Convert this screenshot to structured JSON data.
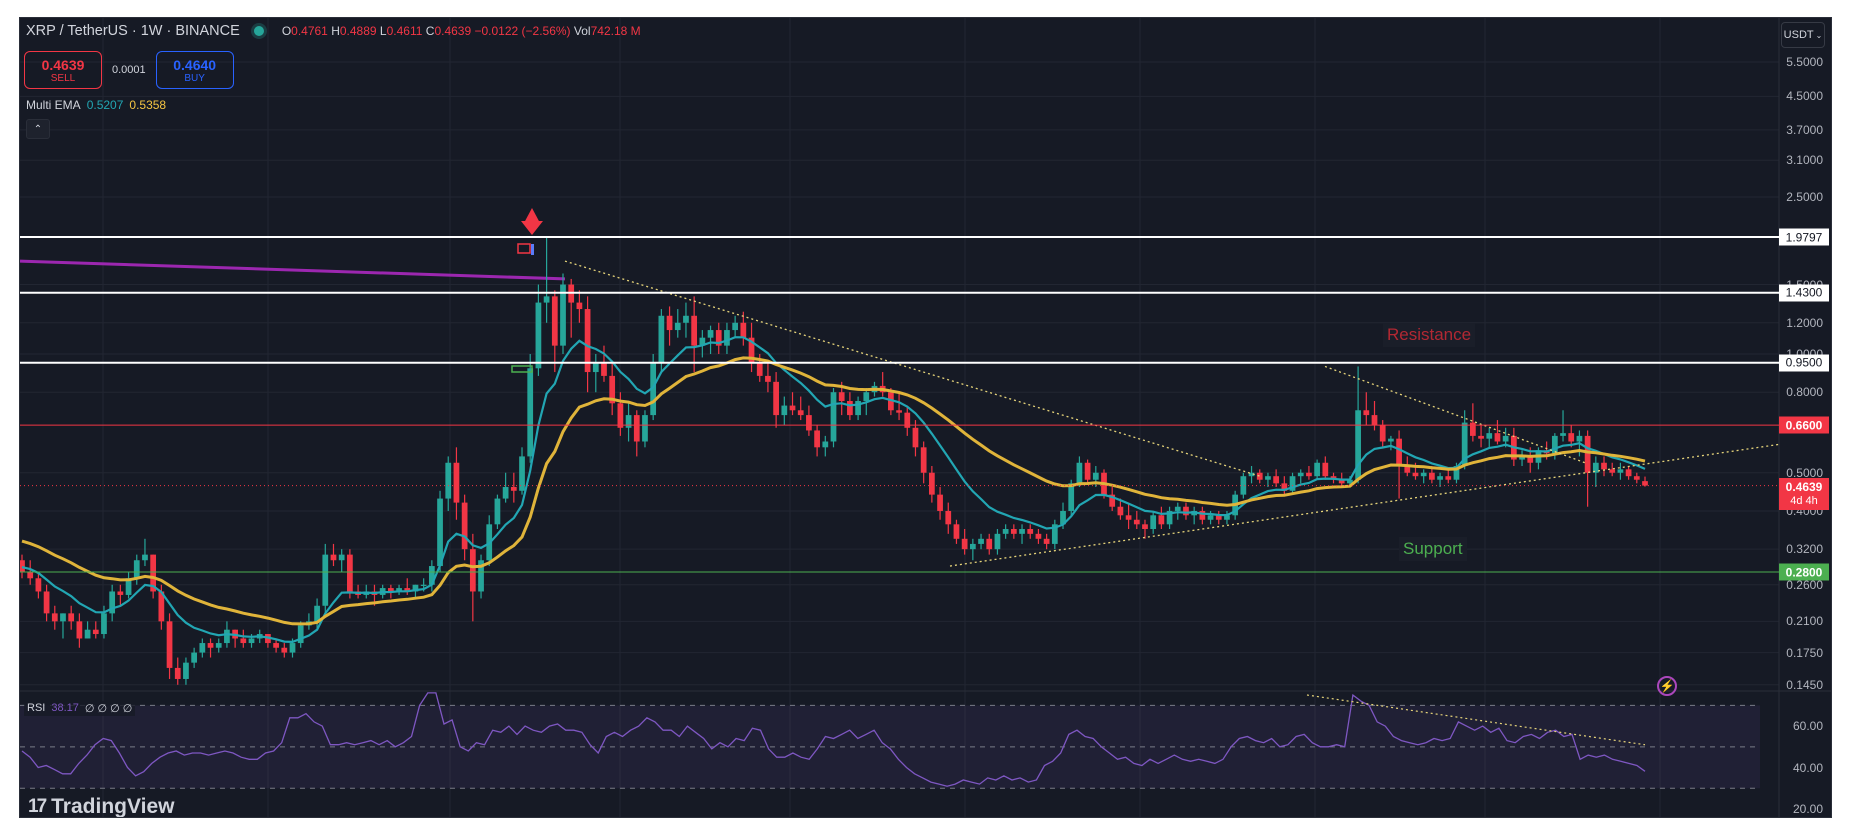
{
  "header": {
    "symbol_title": "XRP / TetherUS · 1W · BINANCE",
    "status_color": "#26a69a",
    "ohlc": {
      "o_label": "O",
      "o": "0.4761",
      "h_label": "H",
      "h": "0.4889",
      "l_label": "L",
      "l": "0.4611",
      "c_label": "C",
      "c": "0.4639",
      "change": "−0.0122 (−2.56%)",
      "vol_label": "Vol",
      "vol": "742.18 M"
    },
    "sell": {
      "price": "0.4639",
      "label": "SELL"
    },
    "spread": "0.0001",
    "buy": {
      "price": "0.4640",
      "label": "BUY"
    },
    "indicator": {
      "name": "Multi EMA",
      "ema1": "0.5207",
      "ema2": "0.5358"
    },
    "collapse_icon": "chevron-up-icon"
  },
  "currency_selector": {
    "label": "USDT",
    "icon": "chevron-down-icon"
  },
  "price_axis": {
    "ticks": [
      "5.5000",
      "4.5000",
      "3.7000",
      "3.1000",
      "2.5000",
      "1.5000",
      "1.2000",
      "1.0000",
      "0.8000",
      "0.5000",
      "0.4000",
      "0.3200",
      "0.2600",
      "0.2100",
      "0.1750",
      "0.1450"
    ]
  },
  "levels": [
    {
      "price": "1.9797",
      "style": "white"
    },
    {
      "price": "1.4300",
      "style": "white"
    },
    {
      "price": "0.9500",
      "style": "white"
    },
    {
      "price": "0.6600",
      "style": "red"
    },
    {
      "price": "0.2800",
      "style": "green"
    }
  ],
  "current_price": {
    "price": "0.4639",
    "countdown": "4d 4h"
  },
  "annotations": {
    "resistance": "Resistance",
    "support": "Support"
  },
  "rsi": {
    "label": "RSI",
    "value": "38.17",
    "extras": "∅ ∅ ∅ ∅",
    "ticks": [
      "60.00",
      "40.00",
      "20.00"
    ]
  },
  "branding": {
    "logo_mark": "17",
    "name": "TradingView"
  },
  "flash_icon": "lightning-icon",
  "colors": {
    "background": "#161a25",
    "up": "#26a69a",
    "down": "#f23645",
    "ema_fast": "#22a6b3",
    "ema_slow": "#e0b43a",
    "ema_long": "#9c27b0",
    "rsi_line": "#7e57c2",
    "trendline": "#e6d47a"
  },
  "chart_data": {
    "type": "candlestick",
    "title": "XRP / TetherUS · 1W · BINANCE",
    "scale": "log",
    "ylim": [
      0.14,
      6.0
    ],
    "yticks": [
      5.5,
      4.5,
      3.7,
      3.1,
      2.5,
      1.5,
      1.2,
      1.0,
      0.8,
      0.5,
      0.4,
      0.32,
      0.26,
      0.21,
      0.175,
      0.145
    ],
    "horizontal_levels": [
      1.9797,
      1.43,
      0.95,
      0.66,
      0.28
    ],
    "current_price": 0.4639,
    "series": [
      {
        "name": "EMA fast",
        "last": 0.5207
      },
      {
        "name": "EMA slow",
        "last": 0.5358
      }
    ],
    "candles_ohlc": [
      [
        0.3,
        0.31,
        0.27,
        0.28
      ],
      [
        0.28,
        0.3,
        0.26,
        0.27
      ],
      [
        0.27,
        0.28,
        0.24,
        0.25
      ],
      [
        0.25,
        0.26,
        0.21,
        0.22
      ],
      [
        0.22,
        0.23,
        0.2,
        0.21
      ],
      [
        0.21,
        0.22,
        0.19,
        0.22
      ],
      [
        0.22,
        0.23,
        0.2,
        0.21
      ],
      [
        0.21,
        0.22,
        0.18,
        0.19
      ],
      [
        0.19,
        0.21,
        0.19,
        0.2
      ],
      [
        0.2,
        0.21,
        0.19,
        0.195
      ],
      [
        0.195,
        0.23,
        0.19,
        0.22
      ],
      [
        0.22,
        0.26,
        0.21,
        0.25
      ],
      [
        0.25,
        0.26,
        0.23,
        0.245
      ],
      [
        0.245,
        0.28,
        0.24,
        0.27
      ],
      [
        0.27,
        0.31,
        0.26,
        0.3
      ],
      [
        0.3,
        0.34,
        0.29,
        0.31
      ],
      [
        0.31,
        0.31,
        0.24,
        0.25
      ],
      [
        0.25,
        0.26,
        0.2,
        0.21
      ],
      [
        0.21,
        0.22,
        0.15,
        0.16
      ],
      [
        0.16,
        0.17,
        0.145,
        0.15
      ],
      [
        0.15,
        0.17,
        0.145,
        0.165
      ],
      [
        0.165,
        0.18,
        0.16,
        0.175
      ],
      [
        0.175,
        0.19,
        0.17,
        0.185
      ],
      [
        0.185,
        0.19,
        0.17,
        0.18
      ],
      [
        0.18,
        0.19,
        0.175,
        0.185
      ],
      [
        0.185,
        0.21,
        0.18,
        0.2
      ],
      [
        0.2,
        0.2,
        0.18,
        0.19
      ],
      [
        0.19,
        0.2,
        0.18,
        0.185
      ],
      [
        0.185,
        0.195,
        0.18,
        0.19
      ],
      [
        0.19,
        0.2,
        0.185,
        0.195
      ],
      [
        0.195,
        0.195,
        0.18,
        0.185
      ],
      [
        0.185,
        0.19,
        0.175,
        0.18
      ],
      [
        0.18,
        0.185,
        0.17,
        0.175
      ],
      [
        0.175,
        0.19,
        0.17,
        0.185
      ],
      [
        0.185,
        0.21,
        0.18,
        0.205
      ],
      [
        0.205,
        0.22,
        0.2,
        0.21
      ],
      [
        0.21,
        0.24,
        0.2,
        0.23
      ],
      [
        0.23,
        0.33,
        0.22,
        0.31
      ],
      [
        0.31,
        0.33,
        0.29,
        0.3
      ],
      [
        0.3,
        0.32,
        0.28,
        0.31
      ],
      [
        0.31,
        0.32,
        0.24,
        0.25
      ],
      [
        0.25,
        0.26,
        0.24,
        0.245
      ],
      [
        0.245,
        0.26,
        0.24,
        0.25
      ],
      [
        0.25,
        0.26,
        0.23,
        0.245
      ],
      [
        0.245,
        0.26,
        0.24,
        0.255
      ],
      [
        0.255,
        0.26,
        0.24,
        0.25
      ],
      [
        0.25,
        0.26,
        0.245,
        0.255
      ],
      [
        0.255,
        0.27,
        0.245,
        0.25
      ],
      [
        0.25,
        0.26,
        0.24,
        0.26
      ],
      [
        0.26,
        0.27,
        0.25,
        0.26
      ],
      [
        0.26,
        0.3,
        0.25,
        0.29
      ],
      [
        0.29,
        0.45,
        0.28,
        0.43
      ],
      [
        0.43,
        0.55,
        0.4,
        0.53
      ],
      [
        0.53,
        0.58,
        0.38,
        0.42
      ],
      [
        0.42,
        0.44,
        0.3,
        0.32
      ],
      [
        0.32,
        0.35,
        0.21,
        0.25
      ],
      [
        0.25,
        0.31,
        0.24,
        0.3
      ],
      [
        0.3,
        0.39,
        0.29,
        0.37
      ],
      [
        0.37,
        0.44,
        0.36,
        0.43
      ],
      [
        0.43,
        0.5,
        0.42,
        0.46
      ],
      [
        0.46,
        0.5,
        0.42,
        0.45
      ],
      [
        0.45,
        0.58,
        0.44,
        0.55
      ],
      [
        0.55,
        1.0,
        0.53,
        0.92
      ],
      [
        0.92,
        1.5,
        0.88,
        1.35
      ],
      [
        1.35,
        1.97,
        1.2,
        1.4
      ],
      [
        1.4,
        1.45,
        0.9,
        1.05
      ],
      [
        1.05,
        1.6,
        1.0,
        1.5
      ],
      [
        1.5,
        1.55,
        1.1,
        1.35
      ],
      [
        1.35,
        1.45,
        1.2,
        1.3
      ],
      [
        1.3,
        1.4,
        0.8,
        0.9
      ],
      [
        0.9,
        1.0,
        0.8,
        0.95
      ],
      [
        0.95,
        1.05,
        0.85,
        0.88
      ],
      [
        0.88,
        0.95,
        0.7,
        0.75
      ],
      [
        0.75,
        0.8,
        0.62,
        0.65
      ],
      [
        0.65,
        0.75,
        0.6,
        0.7
      ],
      [
        0.7,
        0.72,
        0.55,
        0.6
      ],
      [
        0.6,
        0.72,
        0.58,
        0.7
      ],
      [
        0.7,
        1.0,
        0.68,
        0.95
      ],
      [
        0.95,
        1.3,
        0.9,
        1.25
      ],
      [
        1.25,
        1.32,
        1.05,
        1.15
      ],
      [
        1.15,
        1.3,
        1.1,
        1.2
      ],
      [
        1.2,
        1.35,
        1.1,
        1.25
      ],
      [
        1.25,
        1.4,
        0.9,
        1.05
      ],
      [
        1.05,
        1.15,
        0.98,
        1.1
      ],
      [
        1.1,
        1.18,
        1.0,
        1.15
      ],
      [
        1.15,
        1.2,
        1.0,
        1.05
      ],
      [
        1.05,
        1.2,
        1.0,
        1.15
      ],
      [
        1.15,
        1.25,
        1.1,
        1.2
      ],
      [
        1.2,
        1.28,
        1.05,
        1.1
      ],
      [
        1.1,
        1.2,
        0.9,
        0.95
      ],
      [
        0.95,
        1.0,
        0.85,
        0.88
      ],
      [
        0.88,
        0.95,
        0.8,
        0.85
      ],
      [
        0.85,
        0.9,
        0.65,
        0.7
      ],
      [
        0.7,
        0.78,
        0.66,
        0.74
      ],
      [
        0.74,
        0.8,
        0.7,
        0.72
      ],
      [
        0.72,
        0.78,
        0.68,
        0.7
      ],
      [
        0.7,
        0.74,
        0.62,
        0.64
      ],
      [
        0.64,
        0.66,
        0.55,
        0.58
      ],
      [
        0.58,
        0.62,
        0.55,
        0.6
      ],
      [
        0.6,
        0.82,
        0.58,
        0.8
      ],
      [
        0.8,
        0.85,
        0.7,
        0.76
      ],
      [
        0.76,
        0.8,
        0.68,
        0.7
      ],
      [
        0.7,
        0.78,
        0.68,
        0.76
      ],
      [
        0.76,
        0.82,
        0.7,
        0.8
      ],
      [
        0.8,
        0.85,
        0.78,
        0.83
      ],
      [
        0.83,
        0.9,
        0.78,
        0.8
      ],
      [
        0.8,
        0.82,
        0.7,
        0.72
      ],
      [
        0.72,
        0.8,
        0.68,
        0.71
      ],
      [
        0.71,
        0.74,
        0.62,
        0.65
      ],
      [
        0.65,
        0.68,
        0.55,
        0.58
      ],
      [
        0.58,
        0.6,
        0.47,
        0.5
      ],
      [
        0.5,
        0.52,
        0.42,
        0.44
      ],
      [
        0.44,
        0.46,
        0.38,
        0.4
      ],
      [
        0.4,
        0.42,
        0.35,
        0.37
      ],
      [
        0.37,
        0.38,
        0.33,
        0.34
      ],
      [
        0.34,
        0.36,
        0.31,
        0.32
      ],
      [
        0.32,
        0.34,
        0.3,
        0.33
      ],
      [
        0.33,
        0.35,
        0.32,
        0.34
      ],
      [
        0.34,
        0.35,
        0.31,
        0.32
      ],
      [
        0.32,
        0.36,
        0.31,
        0.35
      ],
      [
        0.35,
        0.37,
        0.34,
        0.36
      ],
      [
        0.36,
        0.37,
        0.34,
        0.35
      ],
      [
        0.35,
        0.37,
        0.33,
        0.36
      ],
      [
        0.36,
        0.37,
        0.34,
        0.35
      ],
      [
        0.35,
        0.36,
        0.33,
        0.34
      ],
      [
        0.34,
        0.35,
        0.32,
        0.33
      ],
      [
        0.33,
        0.38,
        0.32,
        0.37
      ],
      [
        0.37,
        0.42,
        0.36,
        0.4
      ],
      [
        0.4,
        0.48,
        0.39,
        0.47
      ],
      [
        0.47,
        0.55,
        0.46,
        0.53
      ],
      [
        0.53,
        0.54,
        0.47,
        0.48
      ],
      [
        0.48,
        0.52,
        0.46,
        0.5
      ],
      [
        0.5,
        0.51,
        0.43,
        0.44
      ],
      [
        0.44,
        0.46,
        0.4,
        0.41
      ],
      [
        0.41,
        0.43,
        0.38,
        0.39
      ],
      [
        0.39,
        0.42,
        0.36,
        0.38
      ],
      [
        0.38,
        0.4,
        0.36,
        0.37
      ],
      [
        0.37,
        0.38,
        0.34,
        0.36
      ],
      [
        0.36,
        0.4,
        0.35,
        0.39
      ],
      [
        0.39,
        0.41,
        0.36,
        0.37
      ],
      [
        0.37,
        0.41,
        0.36,
        0.4
      ],
      [
        0.4,
        0.42,
        0.38,
        0.41
      ],
      [
        0.41,
        0.42,
        0.38,
        0.39
      ],
      [
        0.39,
        0.41,
        0.37,
        0.4
      ],
      [
        0.4,
        0.41,
        0.37,
        0.38
      ],
      [
        0.38,
        0.4,
        0.37,
        0.39
      ],
      [
        0.39,
        0.4,
        0.37,
        0.38
      ],
      [
        0.38,
        0.4,
        0.37,
        0.39
      ],
      [
        0.39,
        0.45,
        0.38,
        0.44
      ],
      [
        0.44,
        0.5,
        0.43,
        0.49
      ],
      [
        0.49,
        0.52,
        0.47,
        0.5
      ],
      [
        0.5,
        0.51,
        0.47,
        0.48
      ],
      [
        0.48,
        0.5,
        0.46,
        0.49
      ],
      [
        0.49,
        0.51,
        0.46,
        0.47
      ],
      [
        0.47,
        0.49,
        0.44,
        0.45
      ],
      [
        0.45,
        0.5,
        0.44,
        0.49
      ],
      [
        0.49,
        0.51,
        0.47,
        0.5
      ],
      [
        0.5,
        0.52,
        0.48,
        0.49
      ],
      [
        0.49,
        0.54,
        0.48,
        0.53
      ],
      [
        0.53,
        0.55,
        0.48,
        0.49
      ],
      [
        0.49,
        0.5,
        0.47,
        0.48
      ],
      [
        0.48,
        0.5,
        0.46,
        0.47
      ],
      [
        0.47,
        0.49,
        0.46,
        0.48
      ],
      [
        0.48,
        0.93,
        0.47,
        0.72
      ],
      [
        0.72,
        0.8,
        0.66,
        0.7
      ],
      [
        0.7,
        0.76,
        0.64,
        0.66
      ],
      [
        0.66,
        0.68,
        0.58,
        0.6
      ],
      [
        0.6,
        0.62,
        0.57,
        0.61
      ],
      [
        0.61,
        0.64,
        0.43,
        0.52
      ],
      [
        0.52,
        0.55,
        0.49,
        0.5
      ],
      [
        0.5,
        0.53,
        0.48,
        0.49
      ],
      [
        0.49,
        0.51,
        0.47,
        0.5
      ],
      [
        0.5,
        0.52,
        0.47,
        0.48
      ],
      [
        0.48,
        0.5,
        0.46,
        0.49
      ],
      [
        0.49,
        0.51,
        0.47,
        0.48
      ],
      [
        0.48,
        0.53,
        0.47,
        0.52
      ],
      [
        0.52,
        0.72,
        0.51,
        0.67
      ],
      [
        0.67,
        0.75,
        0.6,
        0.62
      ],
      [
        0.62,
        0.66,
        0.58,
        0.61
      ],
      [
        0.61,
        0.65,
        0.58,
        0.63
      ],
      [
        0.63,
        0.68,
        0.59,
        0.6
      ],
      [
        0.6,
        0.65,
        0.58,
        0.62
      ],
      [
        0.62,
        0.65,
        0.52,
        0.54
      ],
      [
        0.54,
        0.57,
        0.52,
        0.55
      ],
      [
        0.55,
        0.58,
        0.5,
        0.53
      ],
      [
        0.53,
        0.58,
        0.51,
        0.57
      ],
      [
        0.57,
        0.6,
        0.54,
        0.56
      ],
      [
        0.56,
        0.63,
        0.54,
        0.62
      ],
      [
        0.62,
        0.72,
        0.6,
        0.63
      ],
      [
        0.63,
        0.66,
        0.58,
        0.6
      ],
      [
        0.6,
        0.64,
        0.55,
        0.62
      ],
      [
        0.62,
        0.64,
        0.41,
        0.5
      ],
      [
        0.5,
        0.55,
        0.46,
        0.53
      ],
      [
        0.53,
        0.55,
        0.49,
        0.51
      ],
      [
        0.51,
        0.53,
        0.49,
        0.5
      ],
      [
        0.5,
        0.53,
        0.48,
        0.51
      ],
      [
        0.51,
        0.52,
        0.48,
        0.49
      ],
      [
        0.49,
        0.5,
        0.47,
        0.48
      ],
      [
        0.4761,
        0.4889,
        0.4611,
        0.4639
      ]
    ],
    "rsi_series": [
      48,
      45,
      40,
      41,
      39,
      37,
      37,
      42,
      46,
      51,
      54,
      53,
      47,
      40,
      36,
      38,
      42,
      45,
      47,
      48,
      46,
      47,
      47,
      46,
      47,
      48,
      47,
      45,
      44,
      44,
      47,
      48,
      52,
      64,
      64,
      66,
      62,
      60,
      51,
      51,
      52,
      51,
      52,
      53,
      51,
      53,
      50,
      52,
      55,
      70,
      76,
      76,
      61,
      63,
      50,
      48,
      52,
      51,
      58,
      57,
      60,
      56,
      60,
      58,
      57,
      60,
      61,
      58,
      58,
      57,
      51,
      47,
      55,
      57,
      55,
      58,
      60,
      64,
      62,
      58,
      58,
      55,
      60,
      57,
      54,
      49,
      52,
      50,
      54,
      53,
      59,
      58,
      49,
      45,
      45,
      47,
      45,
      44,
      49,
      55,
      54,
      56,
      58,
      54,
      56,
      58,
      52,
      49,
      44,
      40,
      37,
      35,
      33,
      32,
      31,
      32,
      34,
      33,
      32,
      35,
      34,
      36,
      34,
      35,
      33,
      34,
      41,
      43,
      47,
      56,
      58,
      55,
      54,
      50,
      47,
      44,
      45,
      42,
      41,
      44,
      42,
      44,
      46,
      44,
      43,
      44,
      43,
      42,
      44,
      50,
      54,
      55,
      53,
      52,
      54,
      50,
      51,
      55,
      56,
      52,
      50,
      50,
      51,
      50,
      75,
      72,
      70,
      62,
      60,
      55,
      53,
      52,
      51,
      52,
      54,
      53,
      54,
      62,
      60,
      58,
      60,
      57,
      59,
      53,
      52,
      55,
      56,
      54,
      57,
      58,
      55,
      56,
      44,
      46,
      45,
      46,
      44,
      43,
      42,
      41,
      38.17
    ],
    "rsi_ylim": [
      20,
      75
    ],
    "rsi_levels": [
      70,
      50,
      30
    ],
    "annotations": [
      "Resistance",
      "Support"
    ]
  }
}
